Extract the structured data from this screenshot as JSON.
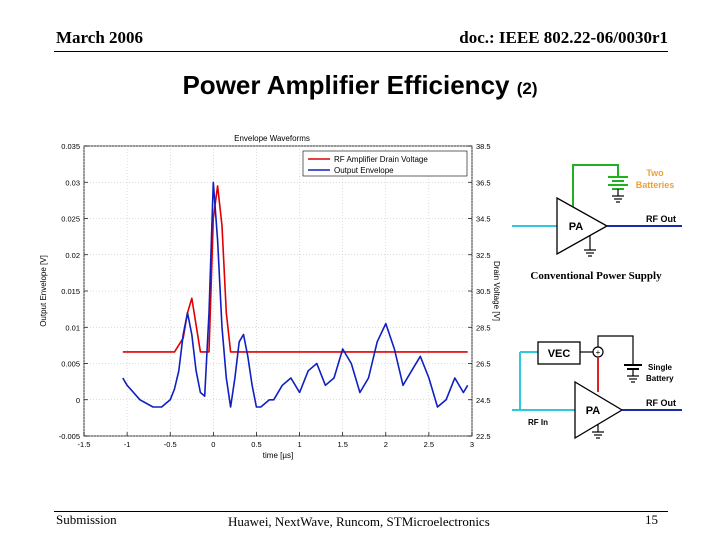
{
  "header": {
    "date": "March 2006",
    "doc_id": "doc.: IEEE 802.22-06/0030r1"
  },
  "slide": {
    "title": "Power Amplifier Efficiency",
    "title_suffix": "(2)"
  },
  "footer": {
    "left": "Submission",
    "center": "Huawei, NextWave, Runcom, STMicroelectronics",
    "page_number": "15"
  },
  "chart_data": {
    "type": "line",
    "title": "Envelope Waveforms",
    "xlabel": "time [µs]",
    "ylabel": "Output Envelope [V]",
    "y2label": "Drain Voltage [V]",
    "xlim": [
      -1.5,
      3
    ],
    "ylim": [
      -0.005,
      0.035
    ],
    "y2lim": [
      22.5,
      38.5
    ],
    "x_ticks": [
      "-1.5",
      "-1",
      "-0.5",
      "0",
      "0.5",
      "1",
      "1.5",
      "2",
      "2.5",
      "3"
    ],
    "y_ticks": [
      "-0.005",
      "0",
      "0.005",
      "0.01",
      "0.015",
      "0.02",
      "0.025",
      "0.03",
      "0.035"
    ],
    "y2_ticks": [
      "22.5",
      "24.5",
      "26.5",
      "28.5",
      "30.5",
      "32.5",
      "34.5",
      "36.5",
      "38.5"
    ],
    "legend_position": "top-right",
    "series": [
      {
        "name": "RF Amplifier Drain Voltage",
        "color": "#e00000",
        "x": [
          -1.05,
          -1.0,
          -0.8,
          -0.6,
          -0.45,
          -0.35,
          -0.3,
          -0.25,
          -0.15,
          -0.05,
          0.0,
          0.05,
          0.1,
          0.15,
          0.2,
          0.3,
          0.45,
          0.5,
          0.6,
          0.8,
          1.0,
          1.2,
          1.4,
          1.6,
          1.8,
          2.0,
          2.2,
          2.4,
          2.6,
          2.8,
          2.95
        ],
        "values": [
          0.0066,
          0.0066,
          0.0066,
          0.0066,
          0.0066,
          0.0085,
          0.012,
          0.014,
          0.0066,
          0.0066,
          0.025,
          0.0295,
          0.024,
          0.012,
          0.0066,
          0.0066,
          0.0066,
          0.0066,
          0.0066,
          0.0066,
          0.0066,
          0.0066,
          0.0066,
          0.0066,
          0.0066,
          0.0066,
          0.0066,
          0.0066,
          0.0066,
          0.0066,
          0.0066
        ]
      },
      {
        "name": "Output Envelope",
        "color": "#1020c0",
        "x": [
          -1.05,
          -1.0,
          -0.85,
          -0.7,
          -0.6,
          -0.5,
          -0.45,
          -0.4,
          -0.35,
          -0.3,
          -0.25,
          -0.2,
          -0.15,
          -0.1,
          -0.05,
          0.0,
          0.05,
          0.1,
          0.15,
          0.2,
          0.25,
          0.3,
          0.35,
          0.4,
          0.45,
          0.5,
          0.55,
          0.6,
          0.65,
          0.7,
          0.8,
          0.9,
          1.0,
          1.1,
          1.2,
          1.3,
          1.4,
          1.5,
          1.6,
          1.7,
          1.8,
          1.9,
          2.0,
          2.1,
          2.2,
          2.3,
          2.4,
          2.5,
          2.6,
          2.7,
          2.8,
          2.9,
          2.95
        ],
        "values": [
          0.003,
          0.002,
          0.0,
          -0.001,
          -0.001,
          0.0,
          0.0015,
          0.004,
          0.009,
          0.012,
          0.009,
          0.004,
          0.001,
          0.0005,
          0.012,
          0.03,
          0.022,
          0.01,
          0.003,
          -0.001,
          0.003,
          0.008,
          0.009,
          0.006,
          0.002,
          -0.001,
          -0.001,
          -0.0005,
          0.0,
          0.0,
          0.002,
          0.003,
          0.001,
          0.004,
          0.005,
          0.002,
          0.003,
          0.007,
          0.005,
          0.001,
          0.003,
          0.008,
          0.0105,
          0.007,
          0.002,
          0.004,
          0.006,
          0.003,
          -0.001,
          0.0,
          0.003,
          0.001,
          0.002
        ]
      }
    ]
  },
  "diagram": {
    "top_circuit": {
      "battery_label_1": "Two",
      "battery_label_2": "Batteries",
      "pa_label": "PA",
      "rf_out_label": "RF Out",
      "caption": "Conventional Power Supply"
    },
    "bottom_circuit": {
      "vec_label": "VEC",
      "battery_label_1": "Single",
      "battery_label_2": "Battery",
      "pa_label": "PA",
      "rf_out_label": "RF Out",
      "rf_in_label": "RF In"
    }
  }
}
